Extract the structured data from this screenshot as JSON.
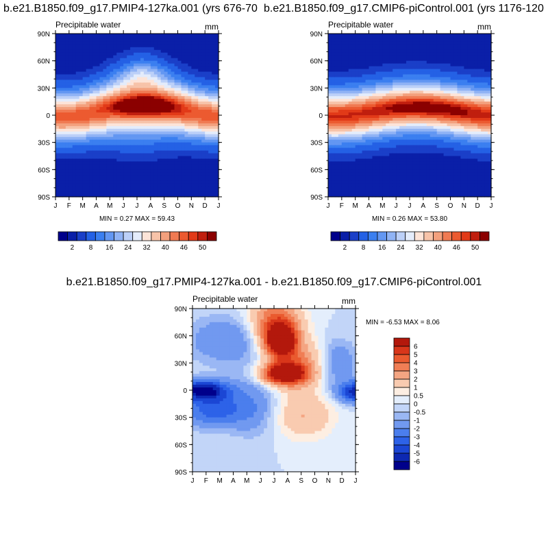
{
  "colors": {
    "abs_palette": [
      "#00008b",
      "#0a1fa8",
      "#1a3fc8",
      "#2461e5",
      "#3b7ff0",
      "#6397f2",
      "#90b3f5",
      "#bcd0f8",
      "#e4ecfb",
      "#fde4d8",
      "#f7c3a9",
      "#f3a07d",
      "#f07a52",
      "#ec5a30",
      "#e23a18",
      "#c01e0e",
      "#8b0000"
    ],
    "diff_palette": [
      "#00008b",
      "#0d28b2",
      "#1b46d4",
      "#2d62e8",
      "#4b7eed",
      "#7199f0",
      "#9ab7f4",
      "#c2d5f8",
      "#e4eefc",
      "#fdeee2",
      "#f9cbb0",
      "#f4a582",
      "#f07e55",
      "#ea5a2f",
      "#d8361a",
      "#b3180c",
      "#8b0000"
    ]
  },
  "chart_data": [
    {
      "type": "heatmap",
      "title": "b.e21.B1850.f09_g17.PMIP4-127ka.001 (yrs 676-70",
      "subtitle_left": "Precipitable water",
      "subtitle_right": "mm",
      "x_ticks": [
        "J",
        "F",
        "M",
        "A",
        "M",
        "J",
        "J",
        "A",
        "S",
        "O",
        "N",
        "D",
        "J"
      ],
      "y_ticks": [
        "90N",
        "60N",
        "30N",
        "0",
        "30S",
        "60S",
        "90S"
      ],
      "ylim": [
        -90,
        90
      ],
      "stats": "MIN =   0.27 MAX =  59.43",
      "min": 0.27,
      "max": 59.43,
      "colorbar_labels": [
        "2",
        "8",
        "16",
        "24",
        "32",
        "40",
        "46",
        "50"
      ],
      "colorbar_levels": [
        1,
        2,
        4,
        8,
        12,
        16,
        20,
        24,
        28,
        32,
        36,
        40,
        43,
        46,
        48,
        50
      ],
      "field": "pmip"
    },
    {
      "type": "heatmap",
      "title": "b.e21.B1850.f09_g17.CMIP6-piControl.001 (yrs 1176-120",
      "subtitle_left": "Precipitable water",
      "subtitle_right": "mm",
      "x_ticks": [
        "J",
        "F",
        "M",
        "A",
        "M",
        "J",
        "J",
        "A",
        "S",
        "O",
        "N",
        "D",
        "J"
      ],
      "y_ticks": [
        "90N",
        "60N",
        "30N",
        "0",
        "30S",
        "60S",
        "90S"
      ],
      "ylim": [
        -90,
        90
      ],
      "stats": "MIN =   0.26 MAX =  53.80",
      "min": 0.26,
      "max": 53.8,
      "colorbar_labels": [
        "2",
        "8",
        "16",
        "24",
        "32",
        "40",
        "46",
        "50"
      ],
      "colorbar_levels": [
        1,
        2,
        4,
        8,
        12,
        16,
        20,
        24,
        28,
        32,
        36,
        40,
        43,
        46,
        48,
        50
      ],
      "field": "pi"
    },
    {
      "type": "heatmap",
      "title": "b.e21.B1850.f09_g17.PMIP4-127ka.001 - b.e21.B1850.f09_g17.CMIP6-piControl.001",
      "subtitle_left": "Precipitable water",
      "subtitle_right": "mm",
      "x_ticks": [
        "J",
        "F",
        "M",
        "A",
        "M",
        "J",
        "J",
        "A",
        "S",
        "O",
        "N",
        "D",
        "J"
      ],
      "y_ticks": [
        "90N",
        "60N",
        "30N",
        "0",
        "30S",
        "60S",
        "90S"
      ],
      "ylim": [
        -90,
        90
      ],
      "stats": "MIN =  -6.53 MAX =   8.06",
      "min": -6.53,
      "max": 8.06,
      "colorbar_labels": [
        "6",
        "5",
        "4",
        "3",
        "2",
        "1",
        "0.5",
        "0",
        "-0.5",
        "-1",
        "-2",
        "-3",
        "-4",
        "-5",
        "-6"
      ],
      "colorbar_levels": [
        -6,
        -5,
        -4,
        -3,
        -2,
        -1,
        -0.5,
        0,
        0.5,
        1,
        2,
        3,
        4,
        5,
        6
      ],
      "field": "diff"
    }
  ]
}
